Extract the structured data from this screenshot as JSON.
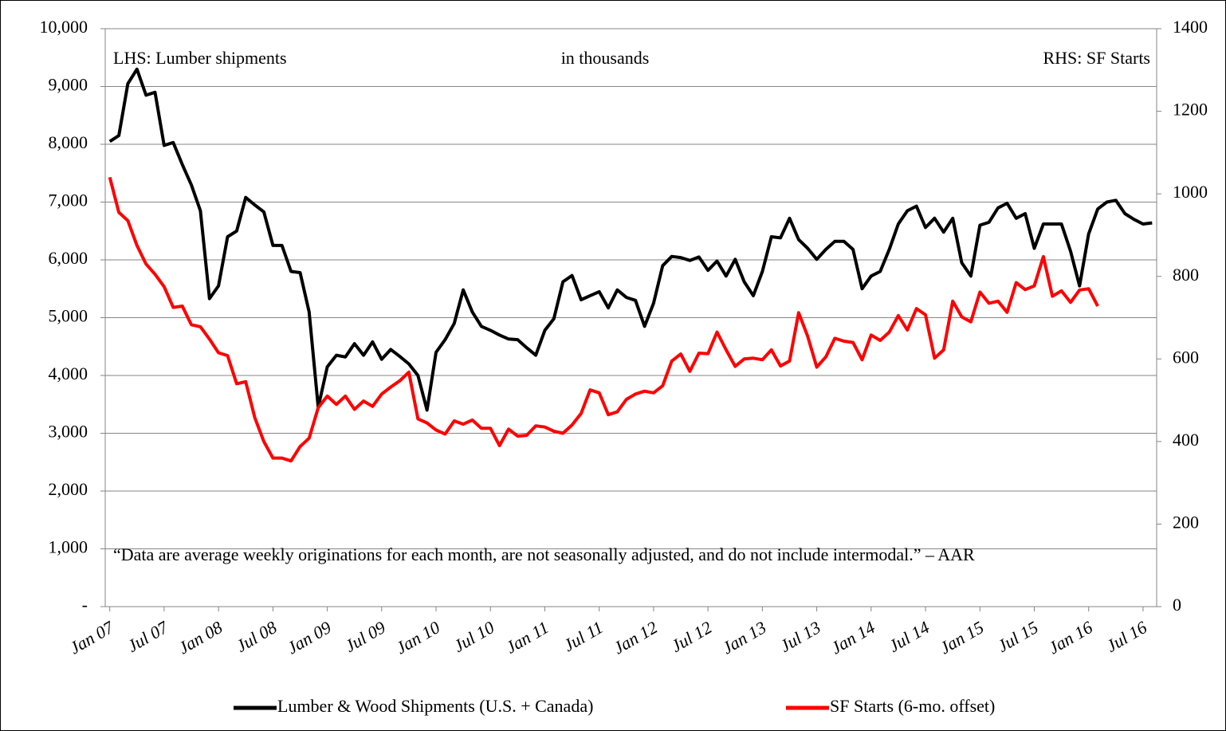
{
  "chart_data": {
    "type": "line",
    "annotations": [
      "LHS: Lumber shipments",
      "in thousands",
      "RHS: SF Starts",
      "“Data are average weekly originations for each month, are not seasonally adjusted, and do not include intermodal.” – AAR"
    ],
    "categories": [
      "Jan 07",
      null,
      null,
      null,
      null,
      null,
      "Jul 07",
      null,
      null,
      null,
      null,
      null,
      "Jan 08",
      null,
      null,
      null,
      null,
      null,
      "Jul 08",
      null,
      null,
      null,
      null,
      null,
      "Jan 09",
      null,
      null,
      null,
      null,
      null,
      "Jul 09",
      null,
      null,
      null,
      null,
      null,
      "Jan 10",
      null,
      null,
      null,
      null,
      null,
      "Jul 10",
      null,
      null,
      null,
      null,
      null,
      "Jan 11",
      null,
      null,
      null,
      null,
      null,
      "Jul 11",
      null,
      null,
      null,
      null,
      null,
      "Jan 12",
      null,
      null,
      null,
      null,
      null,
      "Jul 12",
      null,
      null,
      null,
      null,
      null,
      "Jan 13",
      null,
      null,
      null,
      null,
      null,
      "Jul 13",
      null,
      null,
      null,
      null,
      null,
      "Jan 14",
      null,
      null,
      null,
      null,
      null,
      "Jul 14",
      null,
      null,
      null,
      null,
      null,
      "Jan 15",
      null,
      null,
      null,
      null,
      null,
      "Jul 15",
      null,
      null,
      null,
      null,
      null,
      "Jan 16",
      null,
      null,
      null,
      null,
      null,
      "Jul 16",
      null
    ],
    "series": [
      {
        "name": "Lumber & Wood Shipments (U.S. + Canada)",
        "color": "#000000",
        "axis": "y",
        "values": [
          8050,
          8150,
          9050,
          9300,
          8850,
          8900,
          7980,
          8030,
          7650,
          7300,
          6850,
          5330,
          5550,
          6400,
          6500,
          7080,
          6950,
          6830,
          6250,
          6250,
          5800,
          5780,
          5100,
          3450,
          4150,
          4350,
          4320,
          4550,
          4350,
          4580,
          4280,
          4450,
          4330,
          4200,
          4000,
          3400,
          4400,
          4620,
          4900,
          5480,
          5100,
          4850,
          4780,
          4700,
          4630,
          4620,
          4480,
          4350,
          4780,
          4980,
          5620,
          5730,
          5310,
          5380,
          5450,
          5170,
          5480,
          5350,
          5300,
          4850,
          5250,
          5900,
          6060,
          6040,
          5990,
          6050,
          5820,
          5980,
          5720,
          6010,
          5620,
          5380,
          5800,
          6400,
          6380,
          6720,
          6350,
          6200,
          6010,
          6180,
          6320,
          6320,
          6180,
          5500,
          5720,
          5800,
          6180,
          6620,
          6850,
          6930,
          6560,
          6720,
          6480,
          6720,
          5950,
          5720,
          6600,
          6650,
          6900,
          6980,
          6720,
          6800,
          6200,
          6620,
          6620,
          6620,
          6150,
          5550,
          6450,
          6880,
          7000,
          7030,
          6800,
          6700,
          6620,
          6640
        ]
      },
      {
        "name": "SF Starts (6-mo. offset)",
        "color": "#ff0000",
        "axis": "y2",
        "values": [
          1040,
          955,
          935,
          875,
          830,
          805,
          775,
          725,
          728,
          683,
          678,
          648,
          615,
          608,
          540,
          545,
          458,
          400,
          360,
          360,
          353,
          388,
          408,
          482,
          510,
          490,
          510,
          478,
          498,
          485,
          515,
          532,
          547,
          568,
          455,
          445,
          428,
          418,
          450,
          442,
          452,
          432,
          432,
          390,
          430,
          413,
          415,
          438,
          435,
          425,
          420,
          440,
          468,
          525,
          518,
          465,
          472,
          502,
          515,
          522,
          518,
          535,
          595,
          612,
          570,
          614,
          613,
          665,
          622,
          582,
          600,
          602,
          598,
          622,
          583,
          595,
          712,
          655,
          580,
          605,
          650,
          643,
          640,
          598,
          658,
          645,
          665,
          705,
          670,
          722,
          707,
          602,
          622,
          740,
          702,
          690,
          762,
          735,
          740,
          713,
          785,
          768,
          777,
          848,
          752,
          765,
          737,
          767,
          770,
          728,
          null,
          null,
          null,
          null,
          null,
          null
        ]
      }
    ],
    "ylim": [
      0,
      10000
    ],
    "yticks": [
      {
        "value": 0,
        "label": "-"
      },
      {
        "value": 1000,
        "label": "1,000"
      },
      {
        "value": 2000,
        "label": "2,000"
      },
      {
        "value": 3000,
        "label": "3,000"
      },
      {
        "value": 4000,
        "label": "4,000"
      },
      {
        "value": 5000,
        "label": "5,000"
      },
      {
        "value": 6000,
        "label": "6,000"
      },
      {
        "value": 7000,
        "label": "7,000"
      },
      {
        "value": 8000,
        "label": "8,000"
      },
      {
        "value": 9000,
        "label": "9,000"
      },
      {
        "value": 10000,
        "label": "10,000"
      }
    ],
    "y2lim": [
      0,
      1400
    ],
    "y2ticks": [
      0,
      200,
      400,
      600,
      800,
      1000,
      1200,
      1400
    ],
    "grid": true,
    "legend": "bottom"
  }
}
